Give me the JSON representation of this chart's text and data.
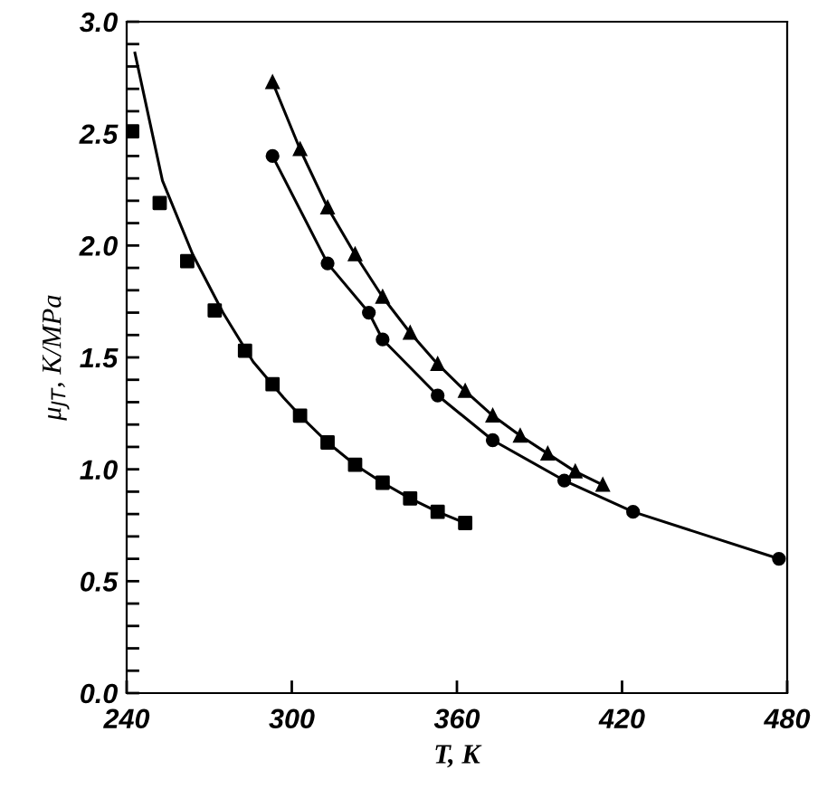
{
  "chart_data": {
    "type": "scatter",
    "xlabel": "T, K",
    "ylabel": "μ$_{JT}$, K/MPa",
    "xlim": [
      240,
      480
    ],
    "xticks": [
      240,
      300,
      360,
      420,
      480
    ],
    "ylim": [
      0,
      3.0
    ],
    "yticks": [
      {
        "value": 0,
        "label": "0.0"
      },
      {
        "value": 0.1,
        "label": null
      },
      {
        "value": 0.2,
        "label": null
      },
      {
        "value": 0.3,
        "label": null
      },
      {
        "value": 0.4,
        "label": null
      },
      {
        "value": 0.5,
        "label": "0.5"
      },
      {
        "value": 0.6,
        "label": null
      },
      {
        "value": 0.7,
        "label": null
      },
      {
        "value": 0.8,
        "label": null
      },
      {
        "value": 0.9,
        "label": null
      },
      {
        "value": 1.0,
        "label": "1.0"
      },
      {
        "value": 1.1,
        "label": null
      },
      {
        "value": 1.2,
        "label": null
      },
      {
        "value": 1.3,
        "label": null
      },
      {
        "value": 1.4,
        "label": null
      },
      {
        "value": 1.5,
        "label": "1.5"
      },
      {
        "value": 1.6,
        "label": null
      },
      {
        "value": 1.7,
        "label": null
      },
      {
        "value": 1.8,
        "label": null
      },
      {
        "value": 1.9,
        "label": null
      },
      {
        "value": 2.0,
        "label": "2.0"
      },
      {
        "value": 2.1,
        "label": null
      },
      {
        "value": 2.2,
        "label": null
      },
      {
        "value": 2.3,
        "label": null
      },
      {
        "value": 2.4,
        "label": null
      },
      {
        "value": 2.5,
        "label": "2.5"
      },
      {
        "value": 2.6,
        "label": null
      },
      {
        "value": 2.7,
        "label": null
      },
      {
        "value": 2.8,
        "label": null
      },
      {
        "value": 2.9,
        "label": null
      },
      {
        "value": 3.0,
        "label": "3.0"
      }
    ],
    "grid": false,
    "legend": false,
    "series": [
      {
        "marker": "square",
        "color": "#000000",
        "x": [
          242,
          252,
          262,
          272,
          283,
          293,
          303,
          313,
          323,
          333,
          343,
          353,
          363
        ],
        "values": [
          2.51,
          2.19,
          1.93,
          1.71,
          1.53,
          1.38,
          1.24,
          1.12,
          1.02,
          0.94,
          0.87,
          0.81,
          0.76
        ]
      },
      {
        "type": "line",
        "marker": "none",
        "line_style": "solid",
        "color": "#000000",
        "x": [
          243,
          253,
          264,
          275,
          286,
          297,
          303,
          313,
          323,
          333,
          343,
          353,
          363
        ],
        "values": [
          2.86,
          2.29,
          1.96,
          1.7,
          1.48,
          1.32,
          1.24,
          1.12,
          1.02,
          0.94,
          0.87,
          0.81,
          0.76
        ]
      },
      {
        "type": "line",
        "marker": "triangle",
        "line_style": "solid",
        "color": "#000000",
        "x": [
          293,
          303,
          313,
          323,
          333,
          343,
          353,
          363,
          373,
          383,
          393,
          403,
          413
        ],
        "values": [
          2.73,
          2.43,
          2.17,
          1.96,
          1.77,
          1.61,
          1.47,
          1.35,
          1.24,
          1.15,
          1.07,
          0.99,
          0.93
        ]
      },
      {
        "type": "line",
        "marker": "circle",
        "line_style": "solid",
        "color": "#000000",
        "x": [
          293,
          313,
          328,
          333,
          353,
          373,
          399,
          424,
          477
        ],
        "values": [
          2.4,
          1.92,
          1.7,
          1.58,
          1.33,
          1.13,
          0.95,
          0.81,
          0.6
        ]
      }
    ]
  }
}
